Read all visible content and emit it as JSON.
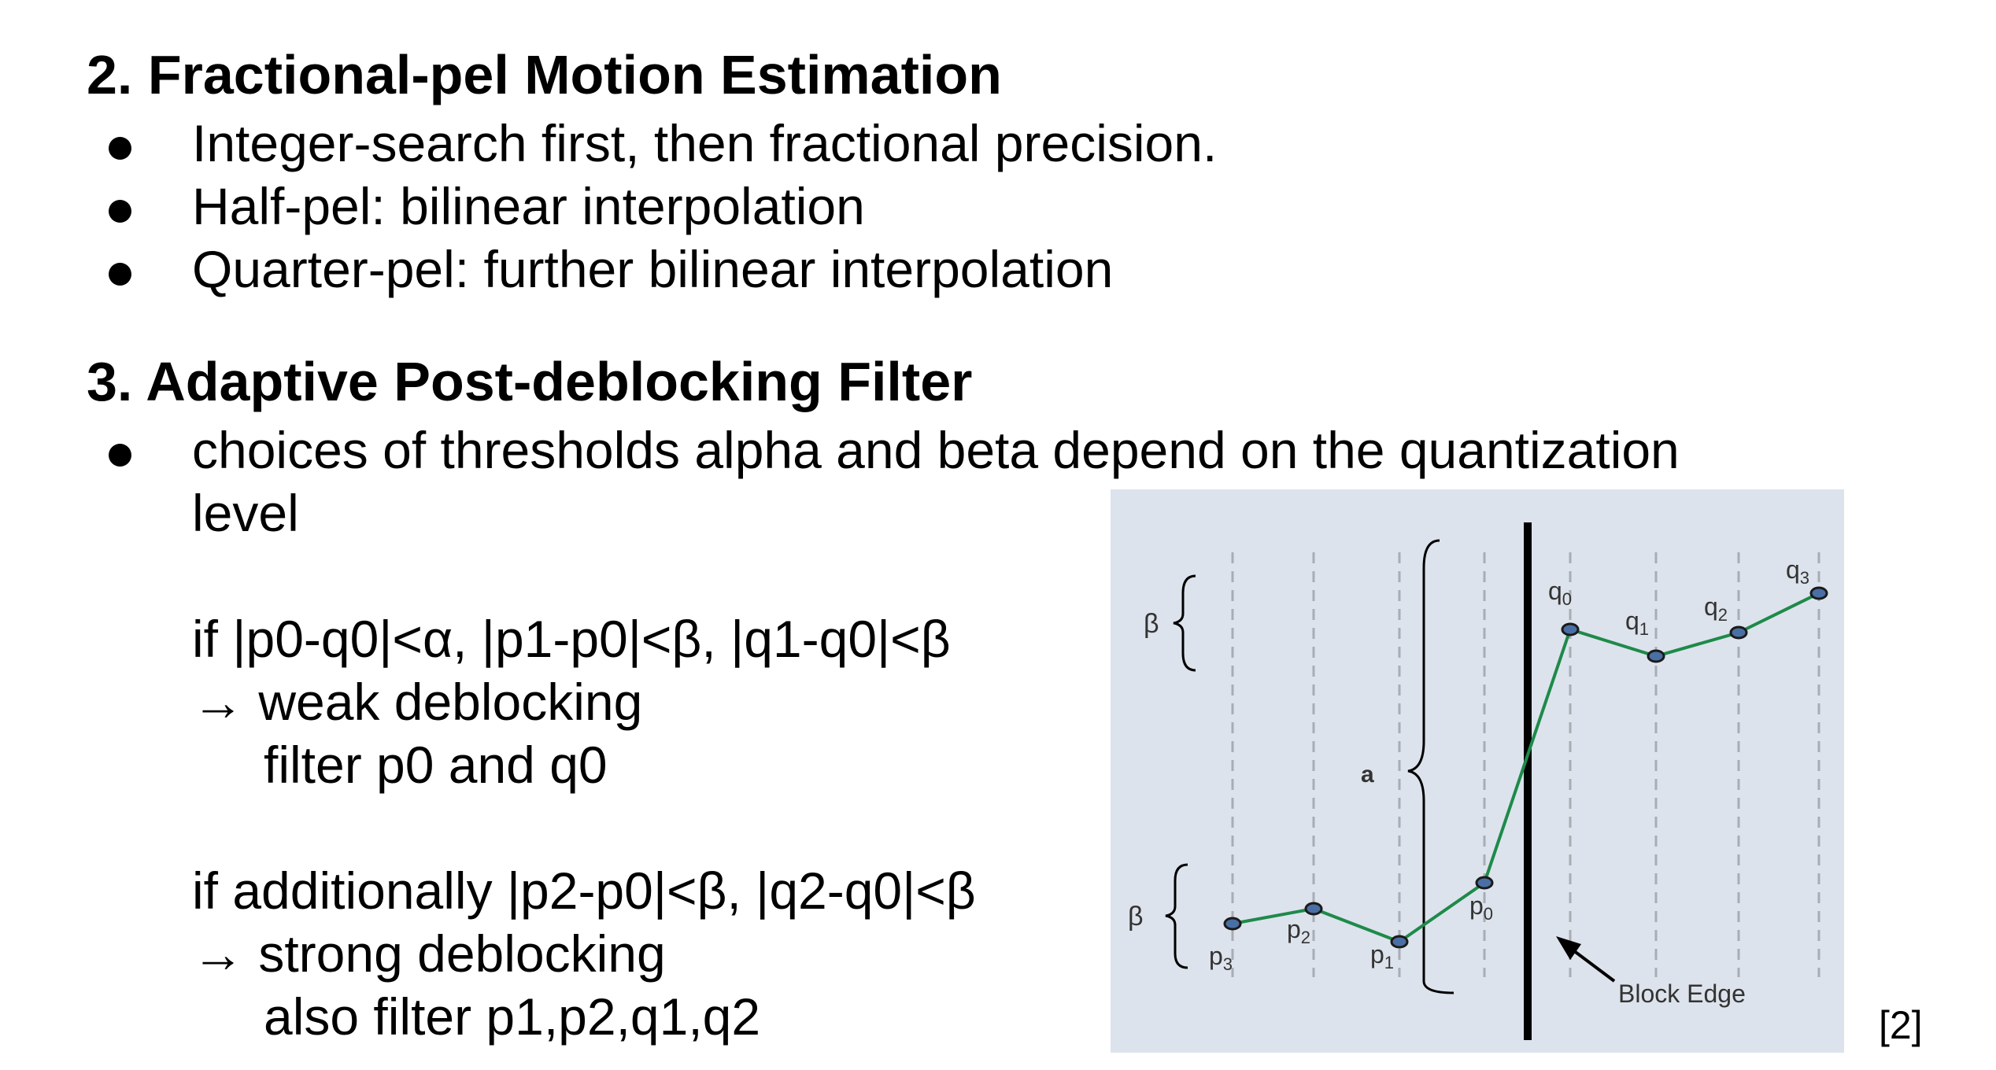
{
  "section2": {
    "heading": "2. Fractional-pel Motion Estimation",
    "bullets": [
      "Integer-search first, then fractional precision.",
      "Half-pel: bilinear interpolation",
      "Quarter-pel: further bilinear interpolation"
    ]
  },
  "section3": {
    "heading": "3. Adaptive Post-deblocking Filter",
    "bullet_line1": "choices of thresholds alpha and beta depend on the quantization",
    "bullet_line2": "level",
    "weak_condition": "if |p0-q0|<α, |p1-p0|<β, |q1-q0|<β",
    "weak_result": "→ weak deblocking",
    "weak_action": "filter p0 and q0",
    "strong_condition": "if additionally |p2-p0|<β, |q2-q0|<β",
    "strong_result": "→ strong deblocking",
    "strong_action": "also filter p1,p2,q1,q2"
  },
  "figure": {
    "beta_label": "β",
    "alpha_label": "a",
    "block_edge_label": "Block Edge",
    "points": [
      {
        "name": "p",
        "sub": "3"
      },
      {
        "name": "p",
        "sub": "2"
      },
      {
        "name": "p",
        "sub": "1"
      },
      {
        "name": "p",
        "sub": "0"
      },
      {
        "name": "q",
        "sub": "0"
      },
      {
        "name": "q",
        "sub": "1"
      },
      {
        "name": "q",
        "sub": "2"
      },
      {
        "name": "q",
        "sub": "3"
      }
    ],
    "colors": {
      "background": "#dde3ec",
      "line": "#1e8a4a",
      "point_fill": "#4a6fa5",
      "edge": "#000000"
    }
  },
  "citation": "[2]"
}
